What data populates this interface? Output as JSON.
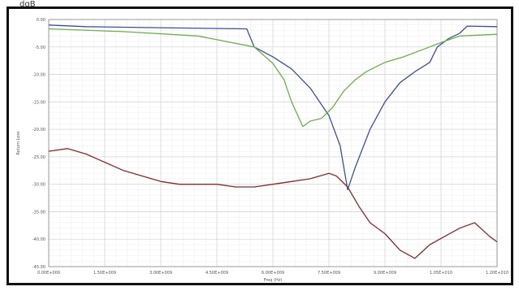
{
  "header": {
    "top_label": "dgB"
  },
  "chart_data": {
    "type": "line",
    "xlabel": "Freq (Hz)",
    "ylabel": "Return Loss",
    "xlim": [
      0,
      12000000000
    ],
    "ylim": [
      -45,
      0
    ],
    "x_ticks": [
      0,
      1500000000,
      3000000000,
      4500000000,
      6000000000,
      7500000000,
      9000000000,
      10500000000,
      12000000000
    ],
    "x_tick_labels": [
      "0.00E+000",
      "1.50E+009",
      "3.00E+009",
      "4.50E+009",
      "6.00E+009",
      "7.50E+009",
      "9.00E+009",
      "1.05E+010",
      "1.20E+010"
    ],
    "y_ticks": [
      0,
      -5,
      -10,
      -15,
      -20,
      -25,
      -30,
      -35,
      -40,
      -45
    ],
    "y_tick_labels": [
      "0.00",
      "-5.00",
      "-10.00",
      "-15.00",
      "-20.00",
      "-25.00",
      "-30.00",
      "-35.00",
      "-40.00",
      "-45.00"
    ],
    "grid": true,
    "colors": {
      "blue": "#3a4fa0",
      "green": "#6ab04c",
      "red": "#8a2a2a",
      "grid": "#d6d6d6"
    },
    "series": [
      {
        "color": "#3a4fa0",
        "x": [
          0,
          1000000000,
          3000000000,
          5300000000,
          5500000000,
          6000000000,
          6500000000,
          7000000000,
          7500000000,
          7800000000,
          8000000000,
          8200000000,
          8600000000,
          9000000000,
          9400000000,
          9800000000,
          10200000000,
          10400000000,
          10700000000,
          11000000000,
          11200000000,
          12000000000
        ],
        "y": [
          -1.0,
          -1.3,
          -1.5,
          -1.7,
          -5.0,
          -6.8,
          -9.0,
          -12.5,
          -17.5,
          -23.0,
          -31.0,
          -27.0,
          -20.0,
          -15.0,
          -11.5,
          -9.5,
          -7.8,
          -5.0,
          -3.5,
          -2.5,
          -1.2,
          -1.3
        ]
      },
      {
        "color": "#6ab04c",
        "x": [
          0,
          2000000000,
          4000000000,
          5500000000,
          6000000000,
          6300000000,
          6500000000,
          6800000000,
          7000000000,
          7300000000,
          7600000000,
          7900000000,
          8200000000,
          8500000000,
          9000000000,
          9500000000,
          10000000000,
          10500000000,
          11000000000,
          12000000000
        ],
        "y": [
          -1.7,
          -2.2,
          -3.0,
          -5.0,
          -8.0,
          -11.0,
          -15.0,
          -19.5,
          -18.5,
          -18.0,
          -16.0,
          -13.0,
          -11.0,
          -9.5,
          -7.8,
          -6.8,
          -5.5,
          -4.2,
          -3.0,
          -2.7
        ]
      },
      {
        "color": "#8a2a2a",
        "x": [
          0,
          500000000,
          1000000000,
          1500000000,
          2000000000,
          2500000000,
          3000000000,
          3500000000,
          4000000000,
          4500000000,
          5000000000,
          5500000000,
          6000000000,
          6500000000,
          7000000000,
          7500000000,
          7700000000,
          8000000000,
          8300000000,
          8600000000,
          9000000000,
          9400000000,
          9800000000,
          10200000000,
          10600000000,
          11000000000,
          11400000000,
          11800000000,
          12000000000
        ],
        "y": [
          -24.0,
          -23.5,
          -24.5,
          -26.0,
          -27.5,
          -28.5,
          -29.5,
          -30.0,
          -30.0,
          -30.0,
          -30.5,
          -30.5,
          -30.0,
          -29.5,
          -29.0,
          -28.0,
          -28.5,
          -30.5,
          -34.0,
          -37.0,
          -39.0,
          -42.0,
          -43.5,
          -41.0,
          -39.5,
          -38.0,
          -37.0,
          -39.5,
          -40.5
        ]
      }
    ]
  }
}
